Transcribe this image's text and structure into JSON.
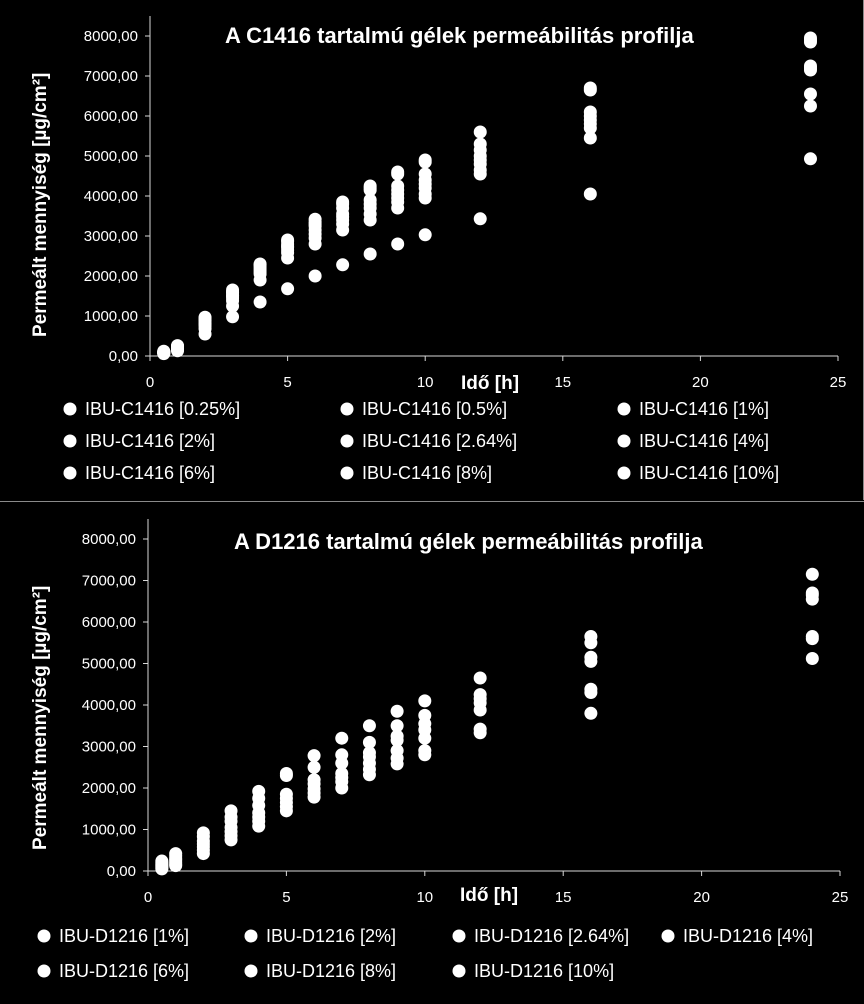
{
  "chart_data": [
    {
      "type": "scatter",
      "title": "A C1416 tartalmú gélek permeábilitás profilja",
      "xlabel": "Idő [h]",
      "ylabel": "Permeált mennyiség [µg/cm²]",
      "xlim": [
        0,
        25
      ],
      "ylim": [
        0,
        8000
      ],
      "x_ticks": [
        "0",
        "5",
        "10",
        "15",
        "20",
        "25"
      ],
      "y_ticks": [
        "0,00",
        "1000,00",
        "2000,00",
        "3000,00",
        "4000,00",
        "5000,00",
        "6000,00",
        "7000,00",
        "8000,00"
      ],
      "marker_color": "#ffffff",
      "legend_position": "bottom",
      "x": [
        0.5,
        1,
        2,
        3,
        4,
        5,
        6,
        7,
        8,
        9,
        10,
        12,
        16,
        24
      ],
      "series": [
        {
          "name": "IBU-C1416 [0.25%]",
          "values": [
            60,
            130,
            550,
            980,
            1350,
            1680,
            2000,
            2280,
            2550,
            2800,
            3030,
            3430,
            4050,
            4930
          ]
        },
        {
          "name": "IBU-C1416 [0.5%]",
          "values": [
            70,
            160,
            680,
            1250,
            1900,
            2450,
            2800,
            3150,
            3400,
            3700,
            3950,
            4550,
            5450,
            6250
          ]
        },
        {
          "name": "IBU-C1416 [1%]",
          "values": [
            80,
            180,
            750,
            1380,
            2050,
            2580,
            2950,
            3300,
            3550,
            3850,
            4050,
            4650,
            5700,
            6550
          ]
        },
        {
          "name": "IBU-C1416 [2%]",
          "values": [
            90,
            200,
            820,
            1450,
            2100,
            2650,
            3050,
            3400,
            3700,
            3950,
            4200,
            4800,
            5800,
            7150
          ]
        },
        {
          "name": "IBU-C1416 [2.64%]",
          "values": [
            100,
            220,
            880,
            1520,
            2200,
            2720,
            3150,
            3480,
            3800,
            4050,
            4300,
            4900,
            5900,
            7200
          ]
        },
        {
          "name": "IBU-C1416 [4%]",
          "values": [
            110,
            240,
            930,
            1580,
            2250,
            2800,
            3250,
            3550,
            3900,
            4150,
            4400,
            5000,
            6000,
            7250
          ]
        },
        {
          "name": "IBU-C1416 [6%]",
          "values": [
            120,
            260,
            970,
            1650,
            2300,
            2870,
            3350,
            3800,
            4150,
            4250,
            4550,
            5150,
            6100,
            7850
          ]
        },
        {
          "name": "IBU-C1416 [8%]",
          "values": [
            90,
            230,
            900,
            1600,
            2280,
            2900,
            3420,
            3850,
            4250,
            4600,
            4900,
            5600,
            6650,
            7950
          ]
        },
        {
          "name": "IBU-C1416 [10%]",
          "values": [
            70,
            190,
            800,
            1500,
            2150,
            2750,
            3300,
            3700,
            4200,
            4550,
            4850,
            5300,
            6700,
            7900
          ]
        }
      ]
    },
    {
      "type": "scatter",
      "title": "A D1216 tartalmú gélek permeábilitás profilja",
      "xlabel": "Idő [h]",
      "ylabel": "Permeált mennyiség [µg/cm²]",
      "xlim": [
        0,
        25
      ],
      "ylim": [
        0,
        8000
      ],
      "x_ticks": [
        "0",
        "5",
        "10",
        "15",
        "20",
        "25"
      ],
      "y_ticks": [
        "0,00",
        "1000,00",
        "2000,00",
        "3000,00",
        "4000,00",
        "5000,00",
        "6000,00",
        "7000,00",
        "8000,00"
      ],
      "marker_color": "#ffffff",
      "legend_position": "bottom",
      "x": [
        0.5,
        1,
        2,
        3,
        4,
        5,
        6,
        7,
        8,
        9,
        10,
        12,
        16,
        24
      ],
      "series": [
        {
          "name": "IBU-D1216 [1%]",
          "values": [
            50,
            130,
            420,
            750,
            1080,
            1450,
            1780,
            2000,
            2320,
            2580,
            2800,
            3330,
            3800,
            5120
          ]
        },
        {
          "name": "IBU-D1216 [2%]",
          "values": [
            80,
            170,
            500,
            850,
            1200,
            1550,
            1880,
            2150,
            2450,
            2720,
            2900,
            3420,
            4300,
            5600
          ]
        },
        {
          "name": "IBU-D1216 [2.64%]",
          "values": [
            110,
            210,
            580,
            950,
            1300,
            1650,
            1980,
            2250,
            2600,
            2900,
            3200,
            3880,
            4380,
            5650
          ]
        },
        {
          "name": "IBU-D1216 [4%]",
          "values": [
            140,
            260,
            650,
            1050,
            1400,
            1750,
            2100,
            2350,
            2750,
            3150,
            3400,
            4050,
            5050,
            6550
          ]
        },
        {
          "name": "IBU-D1216 [6%]",
          "values": [
            170,
            300,
            720,
            1200,
            1580,
            1850,
            2200,
            2600,
            2850,
            3250,
            3550,
            4150,
            5150,
            6650
          ]
        },
        {
          "name": "IBU-D1216 [8%]",
          "values": [
            200,
            360,
            830,
            1300,
            1750,
            2300,
            2500,
            2800,
            3100,
            3500,
            3750,
            4250,
            5500,
            6700
          ]
        },
        {
          "name": "IBU-D1216 [10%]",
          "values": [
            240,
            420,
            920,
            1450,
            1920,
            2350,
            2780,
            3200,
            3500,
            3850,
            4100,
            4650,
            5650,
            7150
          ]
        }
      ]
    }
  ]
}
